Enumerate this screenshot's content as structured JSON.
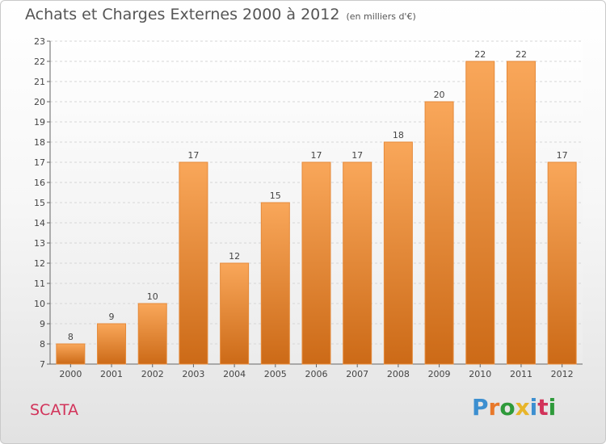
{
  "header": {
    "title": "Achats et Charges Externes 2000 à 2012",
    "subtitle": "(en milliers d'€)"
  },
  "footer": {
    "commune": "SCATA",
    "brand": "Proxiti",
    "brand_colors": [
      "#3c8fd0",
      "#e8782a",
      "#2e9a3a",
      "#e8b52a",
      "#3c8fd0",
      "#d2335a",
      "#2e9a3a"
    ]
  },
  "colors": {
    "bar_top": "#f9a75a",
    "bar_bottom": "#cc6a17"
  },
  "chart_data": {
    "type": "bar",
    "categories": [
      "2000",
      "2001",
      "2002",
      "2003",
      "2004",
      "2005",
      "2006",
      "2007",
      "2008",
      "2009",
      "2010",
      "2011",
      "2012"
    ],
    "values": [
      8,
      9,
      10,
      17,
      12,
      15,
      17,
      17,
      18,
      20,
      22,
      22,
      17
    ],
    "title": "Achats et Charges Externes 2000 à 2012",
    "ylim": [
      7,
      23
    ],
    "yticks": [
      7,
      8,
      9,
      10,
      11,
      12,
      13,
      14,
      15,
      16,
      17,
      18,
      19,
      20,
      21,
      22,
      23
    ],
    "grid": true
  }
}
